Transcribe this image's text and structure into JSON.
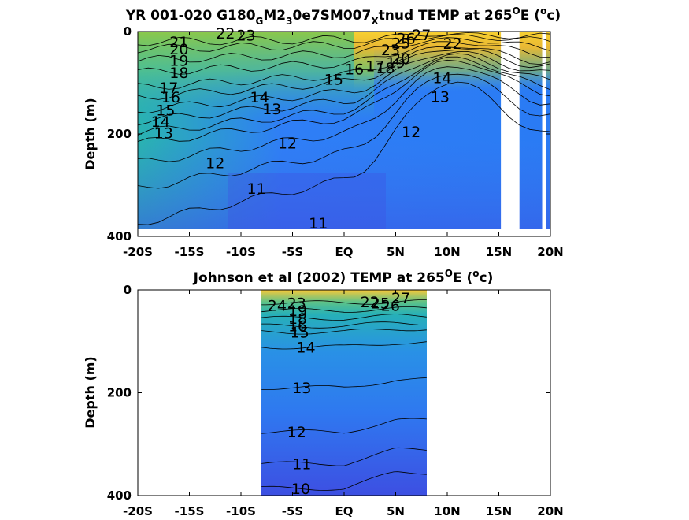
{
  "chart_data": [
    {
      "type": "heatmap",
      "title": "YR 001-020 G180_GM2_30e7SM007_Xtnud TEMP at 265°E (°c)",
      "title_parts": {
        "a": "YR 001-020 G180",
        "sub1": "G",
        "b": "M2",
        "sub2": "3",
        "c": "0e7SM007",
        "sub3": "X",
        "d": "tnud TEMP at 265",
        "sup1": "O",
        "e": "E (",
        "sup2": "o",
        "f": "c)"
      },
      "xlabel": "",
      "ylabel": "Depth (m)",
      "xlim": [
        -20,
        20
      ],
      "ylim": [
        400,
        0
      ],
      "x_ticks": [
        "-20S",
        "-15S",
        "-10S",
        "-5S",
        "EQ",
        "5N",
        "10N",
        "15N",
        "20N"
      ],
      "y_ticks": [
        "0",
        "200",
        "400"
      ],
      "data_x_range": [
        -20,
        20
      ],
      "data_mask": [
        {
          "x": [
            15.2,
            17.0
          ],
          "depth": [
            0,
            400
          ],
          "value": "missing"
        },
        {
          "x": [
            19.2,
            19.6
          ],
          "depth": [
            0,
            400
          ],
          "value": "missing"
        }
      ],
      "contour_labels": [
        {
          "x": -16.0,
          "depth": 20,
          "value": "21"
        },
        {
          "x": -16.0,
          "depth": 34,
          "value": "20"
        },
        {
          "x": -16.0,
          "depth": 56,
          "value": "19"
        },
        {
          "x": -16.0,
          "depth": 80,
          "value": "18"
        },
        {
          "x": -17.0,
          "depth": 109,
          "value": "17"
        },
        {
          "x": -16.8,
          "depth": 128,
          "value": "16"
        },
        {
          "x": -17.3,
          "depth": 153,
          "value": "15"
        },
        {
          "x": -17.8,
          "depth": 175,
          "value": "14"
        },
        {
          "x": -17.5,
          "depth": 198,
          "value": "13"
        },
        {
          "x": -11.5,
          "depth": 3,
          "value": "22"
        },
        {
          "x": -9.5,
          "depth": 7,
          "value": "23"
        },
        {
          "x": -8.2,
          "depth": 128,
          "value": "14"
        },
        {
          "x": -7.0,
          "depth": 151,
          "value": "13"
        },
        {
          "x": -5.5,
          "depth": 218,
          "value": "12"
        },
        {
          "x": -12.5,
          "depth": 256,
          "value": "12"
        },
        {
          "x": -8.5,
          "depth": 306,
          "value": "11"
        },
        {
          "x": -2.5,
          "depth": 374,
          "value": "11"
        },
        {
          "x": 6.5,
          "depth": 195,
          "value": "12"
        },
        {
          "x": -1.0,
          "depth": 93,
          "value": "15"
        },
        {
          "x": 1.0,
          "depth": 73,
          "value": "16"
        },
        {
          "x": 3.0,
          "depth": 67,
          "value": "17"
        },
        {
          "x": 4.0,
          "depth": 71,
          "value": "18"
        },
        {
          "x": 5.0,
          "depth": 60,
          "value": "19"
        },
        {
          "x": 5.5,
          "depth": 52,
          "value": "20"
        },
        {
          "x": 4.5,
          "depth": 35,
          "value": "23"
        },
        {
          "x": 5.5,
          "depth": 22,
          "value": "25"
        },
        {
          "x": 6.0,
          "depth": 13,
          "value": "26"
        },
        {
          "x": 7.5,
          "depth": 6,
          "value": "27"
        },
        {
          "x": 10.5,
          "depth": 23,
          "value": "22"
        },
        {
          "x": 9.5,
          "depth": 90,
          "value": "14"
        },
        {
          "x": 9.3,
          "depth": 127,
          "value": "13"
        }
      ],
      "colormap": "parula",
      "grid": false
    },
    {
      "type": "heatmap",
      "title": "Johnson et al (2002) TEMP at 265°E (°c)",
      "title_parts": {
        "a": "Johnson et al (2002) TEMP at 265",
        "sup1": "O",
        "e": "E (",
        "sup2": "o",
        "f": "c)"
      },
      "xlabel": "",
      "ylabel": "Depth (m)",
      "xlim": [
        -20,
        20
      ],
      "ylim": [
        400,
        0
      ],
      "x_ticks": [
        "-20S",
        "-15S",
        "-10S",
        "-5S",
        "EQ",
        "5N",
        "10N",
        "15N",
        "20N"
      ],
      "y_ticks": [
        "0",
        "200",
        "400"
      ],
      "data_x_range": [
        -8,
        8
      ],
      "contour_labels": [
        {
          "x": -6.5,
          "depth": 30,
          "value": "24"
        },
        {
          "x": -4.6,
          "depth": 25,
          "value": "23"
        },
        {
          "x": -4.5,
          "depth": 40,
          "value": "19"
        },
        {
          "x": -4.5,
          "depth": 55,
          "value": "18"
        },
        {
          "x": -4.5,
          "depth": 70,
          "value": "16"
        },
        {
          "x": -4.3,
          "depth": 82,
          "value": "15"
        },
        {
          "x": -3.7,
          "depth": 111,
          "value": "14"
        },
        {
          "x": -4.1,
          "depth": 190,
          "value": "13"
        },
        {
          "x": -4.6,
          "depth": 276,
          "value": "12"
        },
        {
          "x": -4.1,
          "depth": 338,
          "value": "11"
        },
        {
          "x": -4.2,
          "depth": 386,
          "value": "10"
        },
        {
          "x": 2.5,
          "depth": 23,
          "value": "22"
        },
        {
          "x": 3.5,
          "depth": 25,
          "value": "25"
        },
        {
          "x": 4.5,
          "depth": 30,
          "value": "26"
        },
        {
          "x": 5.5,
          "depth": 15,
          "value": "27"
        }
      ],
      "colormap": "parula",
      "grid": false
    }
  ]
}
